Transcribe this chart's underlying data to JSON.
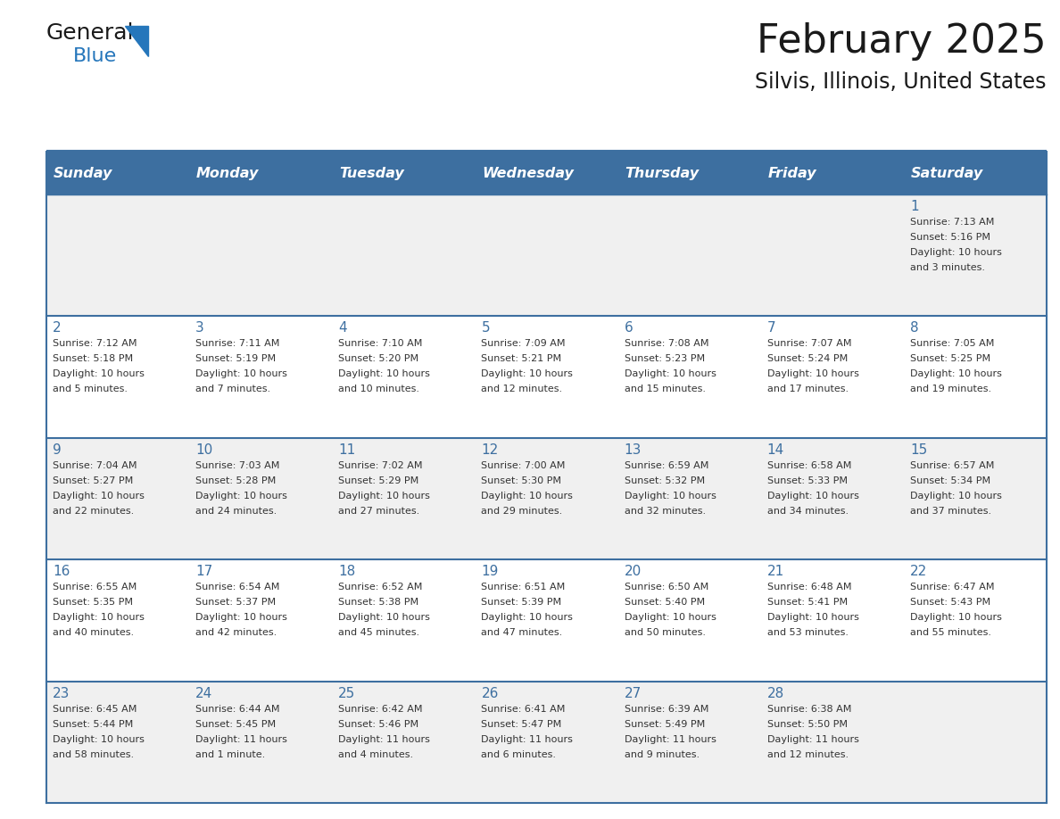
{
  "title": "February 2025",
  "subtitle": "Silvis, Illinois, United States",
  "header_bg_color": "#3d6fa0",
  "header_text_color": "#ffffff",
  "day_names": [
    "Sunday",
    "Monday",
    "Tuesday",
    "Wednesday",
    "Thursday",
    "Friday",
    "Saturday"
  ],
  "cell_bg_color_odd": "#f0f0f0",
  "cell_bg_color_even": "#ffffff",
  "cell_text_color": "#333333",
  "day_num_color": "#3d6fa0",
  "border_color": "#3d6fa0",
  "title_color": "#1a1a1a",
  "logo_black": "#1a1a1a",
  "logo_blue": "#2576bb",
  "calendar_data": [
    [
      {
        "day": null,
        "info": ""
      },
      {
        "day": null,
        "info": ""
      },
      {
        "day": null,
        "info": ""
      },
      {
        "day": null,
        "info": ""
      },
      {
        "day": null,
        "info": ""
      },
      {
        "day": null,
        "info": ""
      },
      {
        "day": 1,
        "info": "Sunrise: 7:13 AM\nSunset: 5:16 PM\nDaylight: 10 hours\nand 3 minutes."
      }
    ],
    [
      {
        "day": 2,
        "info": "Sunrise: 7:12 AM\nSunset: 5:18 PM\nDaylight: 10 hours\nand 5 minutes."
      },
      {
        "day": 3,
        "info": "Sunrise: 7:11 AM\nSunset: 5:19 PM\nDaylight: 10 hours\nand 7 minutes."
      },
      {
        "day": 4,
        "info": "Sunrise: 7:10 AM\nSunset: 5:20 PM\nDaylight: 10 hours\nand 10 minutes."
      },
      {
        "day": 5,
        "info": "Sunrise: 7:09 AM\nSunset: 5:21 PM\nDaylight: 10 hours\nand 12 minutes."
      },
      {
        "day": 6,
        "info": "Sunrise: 7:08 AM\nSunset: 5:23 PM\nDaylight: 10 hours\nand 15 minutes."
      },
      {
        "day": 7,
        "info": "Sunrise: 7:07 AM\nSunset: 5:24 PM\nDaylight: 10 hours\nand 17 minutes."
      },
      {
        "day": 8,
        "info": "Sunrise: 7:05 AM\nSunset: 5:25 PM\nDaylight: 10 hours\nand 19 minutes."
      }
    ],
    [
      {
        "day": 9,
        "info": "Sunrise: 7:04 AM\nSunset: 5:27 PM\nDaylight: 10 hours\nand 22 minutes."
      },
      {
        "day": 10,
        "info": "Sunrise: 7:03 AM\nSunset: 5:28 PM\nDaylight: 10 hours\nand 24 minutes."
      },
      {
        "day": 11,
        "info": "Sunrise: 7:02 AM\nSunset: 5:29 PM\nDaylight: 10 hours\nand 27 minutes."
      },
      {
        "day": 12,
        "info": "Sunrise: 7:00 AM\nSunset: 5:30 PM\nDaylight: 10 hours\nand 29 minutes."
      },
      {
        "day": 13,
        "info": "Sunrise: 6:59 AM\nSunset: 5:32 PM\nDaylight: 10 hours\nand 32 minutes."
      },
      {
        "day": 14,
        "info": "Sunrise: 6:58 AM\nSunset: 5:33 PM\nDaylight: 10 hours\nand 34 minutes."
      },
      {
        "day": 15,
        "info": "Sunrise: 6:57 AM\nSunset: 5:34 PM\nDaylight: 10 hours\nand 37 minutes."
      }
    ],
    [
      {
        "day": 16,
        "info": "Sunrise: 6:55 AM\nSunset: 5:35 PM\nDaylight: 10 hours\nand 40 minutes."
      },
      {
        "day": 17,
        "info": "Sunrise: 6:54 AM\nSunset: 5:37 PM\nDaylight: 10 hours\nand 42 minutes."
      },
      {
        "day": 18,
        "info": "Sunrise: 6:52 AM\nSunset: 5:38 PM\nDaylight: 10 hours\nand 45 minutes."
      },
      {
        "day": 19,
        "info": "Sunrise: 6:51 AM\nSunset: 5:39 PM\nDaylight: 10 hours\nand 47 minutes."
      },
      {
        "day": 20,
        "info": "Sunrise: 6:50 AM\nSunset: 5:40 PM\nDaylight: 10 hours\nand 50 minutes."
      },
      {
        "day": 21,
        "info": "Sunrise: 6:48 AM\nSunset: 5:41 PM\nDaylight: 10 hours\nand 53 minutes."
      },
      {
        "day": 22,
        "info": "Sunrise: 6:47 AM\nSunset: 5:43 PM\nDaylight: 10 hours\nand 55 minutes."
      }
    ],
    [
      {
        "day": 23,
        "info": "Sunrise: 6:45 AM\nSunset: 5:44 PM\nDaylight: 10 hours\nand 58 minutes."
      },
      {
        "day": 24,
        "info": "Sunrise: 6:44 AM\nSunset: 5:45 PM\nDaylight: 11 hours\nand 1 minute."
      },
      {
        "day": 25,
        "info": "Sunrise: 6:42 AM\nSunset: 5:46 PM\nDaylight: 11 hours\nand 4 minutes."
      },
      {
        "day": 26,
        "info": "Sunrise: 6:41 AM\nSunset: 5:47 PM\nDaylight: 11 hours\nand 6 minutes."
      },
      {
        "day": 27,
        "info": "Sunrise: 6:39 AM\nSunset: 5:49 PM\nDaylight: 11 hours\nand 9 minutes."
      },
      {
        "day": 28,
        "info": "Sunrise: 6:38 AM\nSunset: 5:50 PM\nDaylight: 11 hours\nand 12 minutes."
      },
      {
        "day": null,
        "info": ""
      }
    ]
  ]
}
